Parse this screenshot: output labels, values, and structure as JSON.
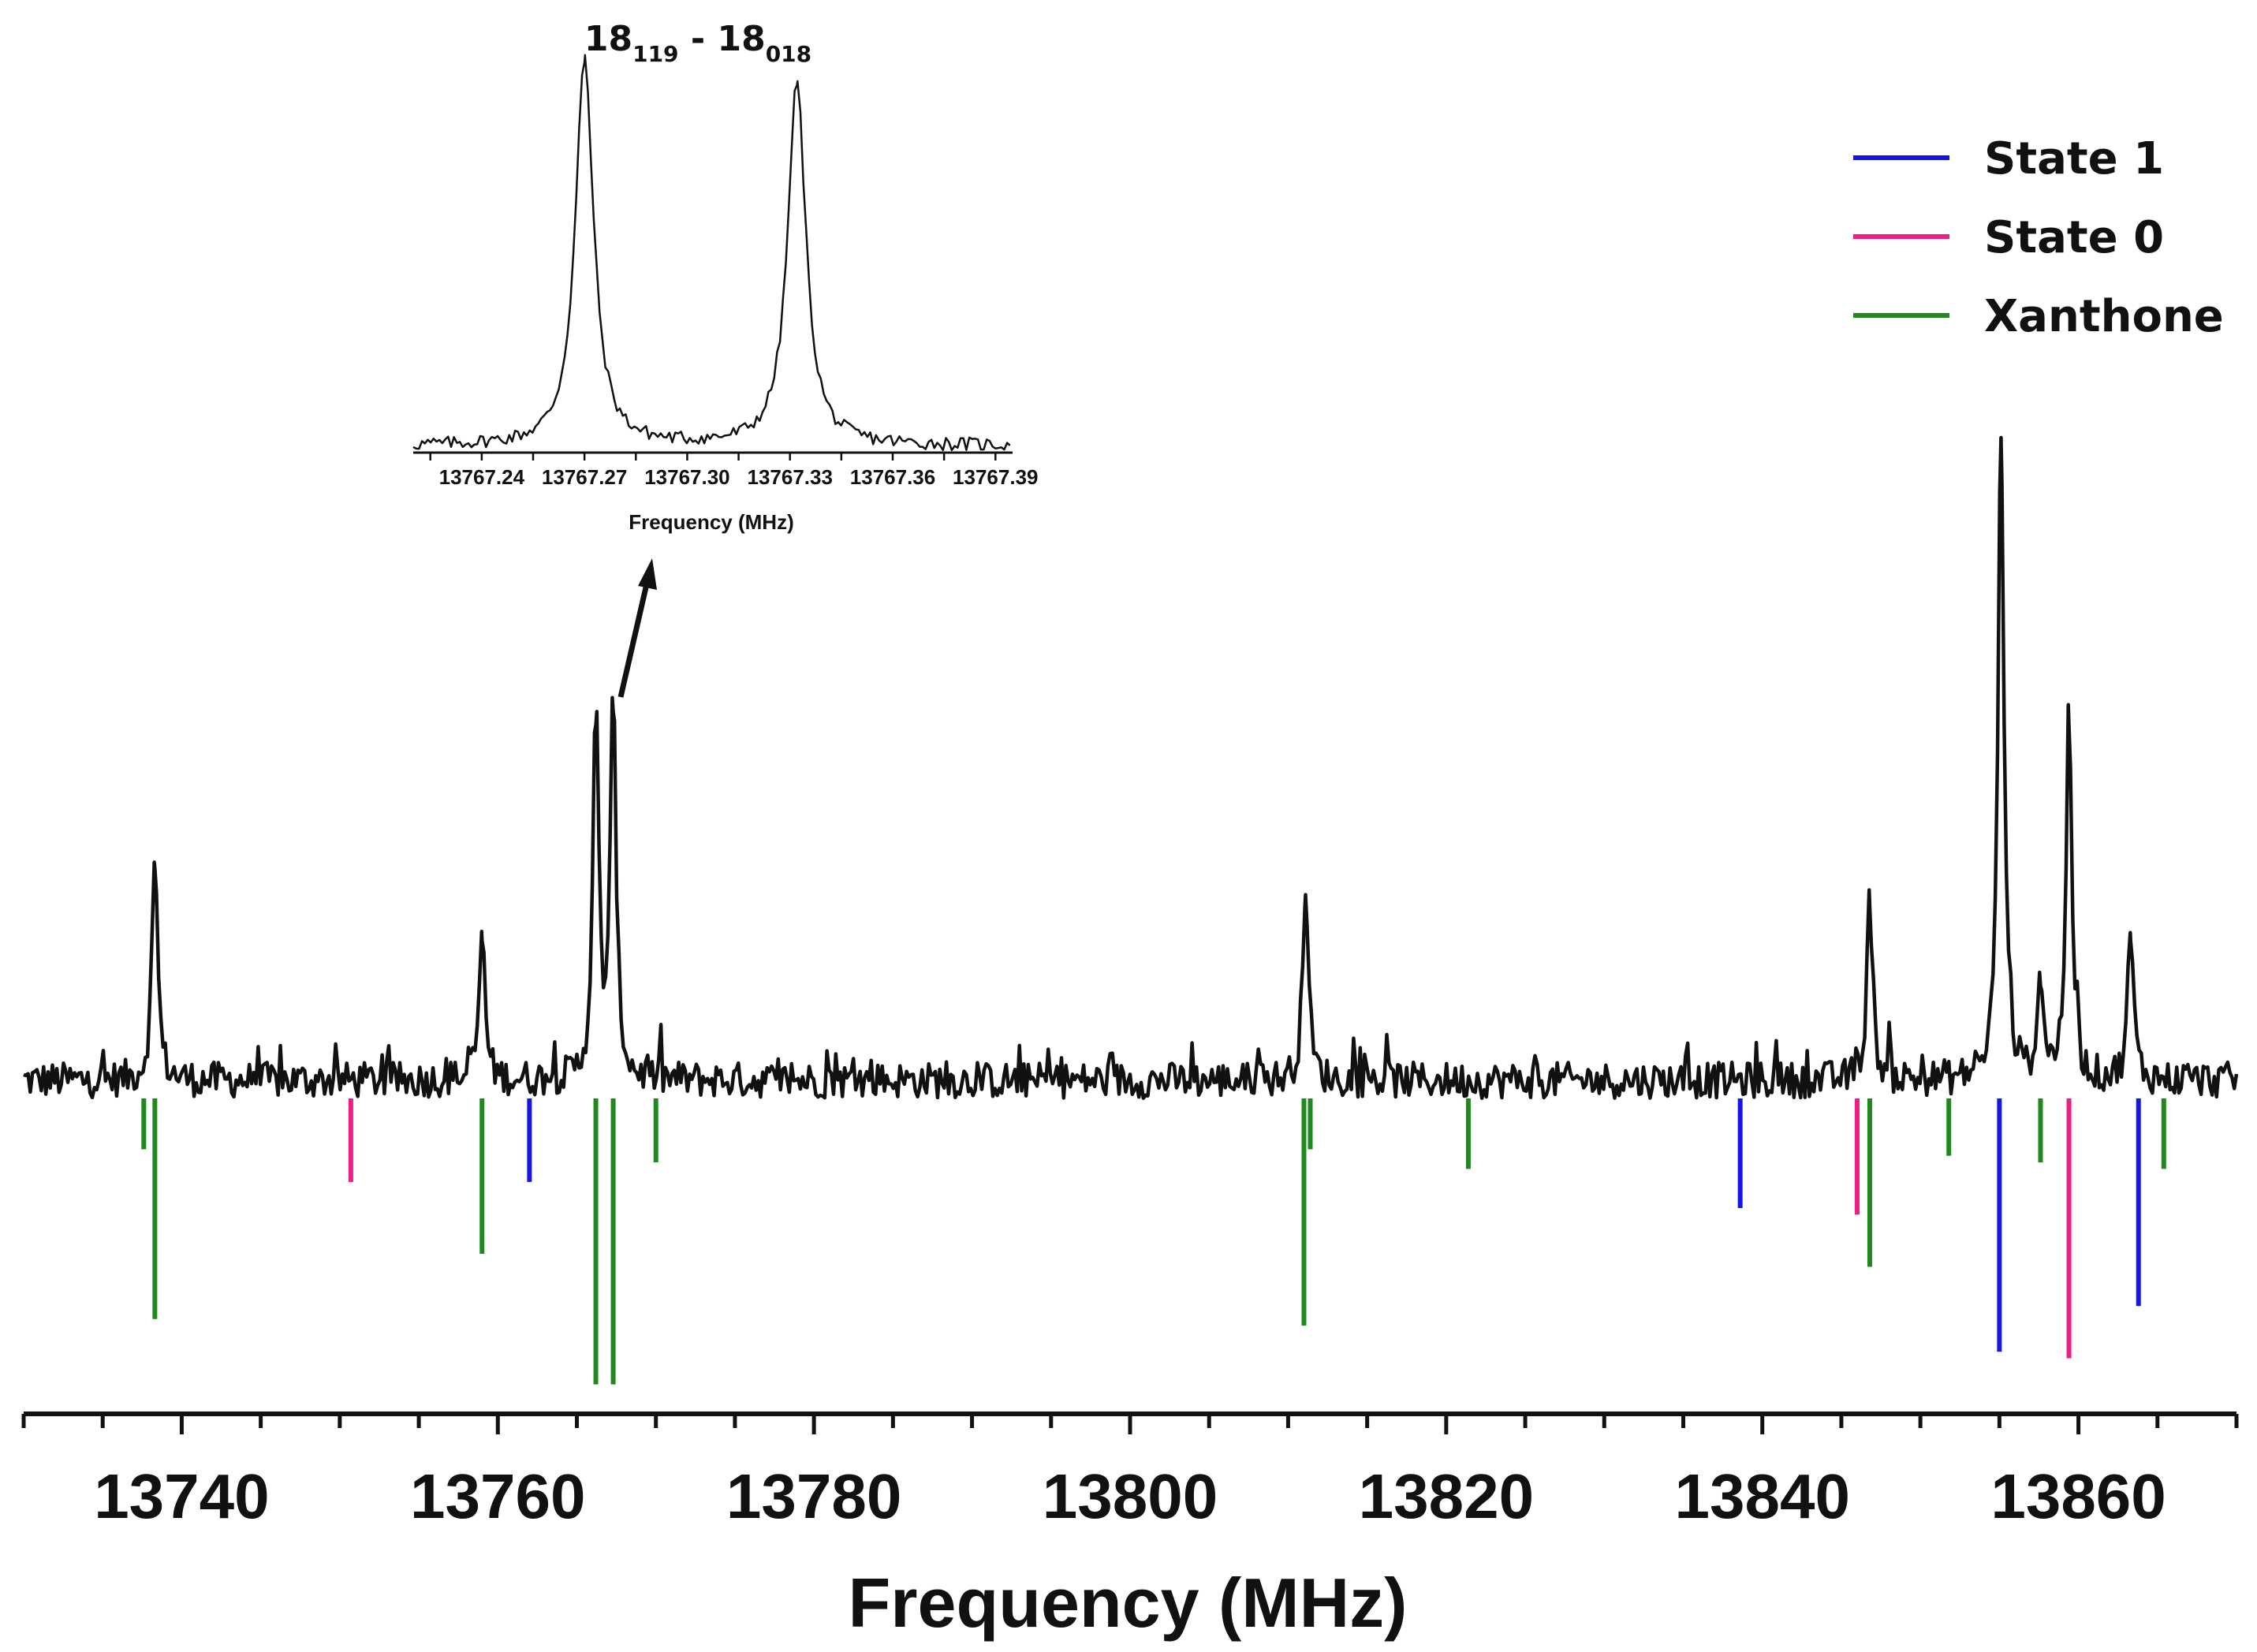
{
  "chart_data": {
    "type": "line",
    "title": "",
    "xlabel": "Frequency (MHz)",
    "ylabel": "",
    "xlim": [
      13730,
      13870
    ],
    "x_ticks": [
      13740,
      13760,
      13780,
      13800,
      13820,
      13840,
      13860
    ],
    "grid": false,
    "legend_position": "top-right",
    "colors": {
      "spectrum": "#111111",
      "State 1": "#1515e6",
      "State 0": "#ee1e84",
      "Xanthone": "#1e8a1e"
    },
    "spectrum_peaks": [
      {
        "x": 13738.3,
        "y": 0.34
      },
      {
        "x": 13759.0,
        "y": 0.23
      },
      {
        "x": 13766.2,
        "y": 0.56
      },
      {
        "x": 13767.3,
        "y": 0.58
      },
      {
        "x": 13811.1,
        "y": 0.3
      },
      {
        "x": 13846.8,
        "y": 0.28
      },
      {
        "x": 13855.1,
        "y": 1.0
      },
      {
        "x": 13857.6,
        "y": 0.16
      },
      {
        "x": 13859.4,
        "y": 0.56
      },
      {
        "x": 13863.3,
        "y": 0.23
      }
    ],
    "series": [
      {
        "name": "State 1",
        "x": [
          13762.0,
          13838.6,
          13855.0,
          13863.8
        ],
        "y": [
          -0.14,
          -0.18,
          -0.4,
          -0.33
        ]
      },
      {
        "name": "State 0",
        "x": [
          13750.7,
          13846.0,
          13859.4
        ],
        "y": [
          -0.14,
          -0.19,
          -0.41
        ]
      },
      {
        "name": "Xanthone",
        "x": [
          13737.6,
          13738.3,
          13759.0,
          13766.2,
          13767.3,
          13770.0,
          13811.0,
          13811.4,
          13821.4,
          13846.8,
          13851.8,
          13857.6,
          13865.4
        ],
        "y": [
          -0.09,
          -0.35,
          -0.25,
          -0.45,
          -0.45,
          -0.11,
          -0.36,
          -0.09,
          -0.12,
          -0.27,
          -0.1,
          -0.11,
          -0.12
        ]
      }
    ],
    "inset": {
      "label_base_left": "18",
      "label_sub_left": "119",
      "label_separator": " - ",
      "label_base_right": "18",
      "label_sub_right": "018",
      "xlabel": "Frequency (MHz)",
      "xlim": [
        13767.22,
        13767.395
      ],
      "x_ticks": [
        "13767.24",
        "13767.27",
        "13767.30",
        "13767.33",
        "13767.36",
        "13767.39"
      ],
      "x_tick_values": [
        13767.24,
        13767.27,
        13767.3,
        13767.33,
        13767.36,
        13767.39
      ],
      "peaks": [
        {
          "x": 13767.27,
          "y": 1.0
        },
        {
          "x": 13767.332,
          "y": 0.94
        }
      ]
    }
  }
}
